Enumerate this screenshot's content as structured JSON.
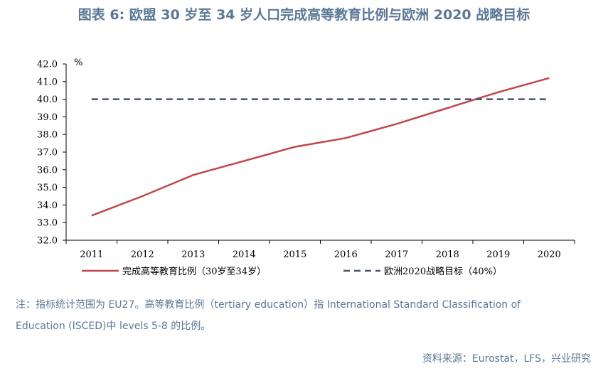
{
  "title": "图表 6: 欧盟 30 岁至 34 岁人口完成高等教育比例与欧洲 2020 战略目标",
  "note_line1": "注：指标统计范围为 EU27。高等教育比例（tertiary education）指 International Standard Classification of",
  "note_line2": "Education (ISCED)中 levels 5-8 的比例。",
  "source": "资料来源：Eurostat，LFS，兴业研究",
  "colors": {
    "series1": "#c0454f",
    "series2": "#44546a",
    "text_accent": "#5a7896"
  },
  "chart_data": {
    "type": "line",
    "ylabel": "%",
    "ylim": [
      32.0,
      42.0
    ],
    "y_ticks": [
      "42.0",
      "41.0",
      "40.0",
      "39.0",
      "38.0",
      "37.0",
      "36.0",
      "35.0",
      "34.0",
      "33.0",
      "32.0"
    ],
    "categories": [
      "2011",
      "2012",
      "2013",
      "2014",
      "2015",
      "2016",
      "2017",
      "2018",
      "2019",
      "2020"
    ],
    "legend_position": "bottom",
    "grid": false,
    "series": [
      {
        "name": "完成高等教育比例（30岁至34岁）",
        "style": "solid",
        "color": "#c0454f",
        "values": [
          33.4,
          34.5,
          35.7,
          36.5,
          37.3,
          37.8,
          38.6,
          39.5,
          40.4,
          41.2
        ]
      },
      {
        "name": "欧洲2020战略目标（40%）",
        "style": "dashed",
        "color": "#44546a",
        "values": [
          40.0,
          40.0,
          40.0,
          40.0,
          40.0,
          40.0,
          40.0,
          40.0,
          40.0,
          40.0
        ]
      }
    ]
  }
}
